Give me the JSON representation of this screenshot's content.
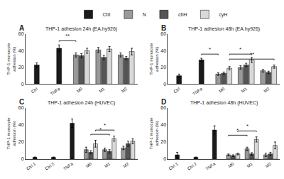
{
  "chart_data": [
    {
      "type": "bar",
      "panel_label": "A",
      "title": "THP-1 adhesion 24h (EA.hy926)",
      "ylabel": "THP-1 monocyte adhesion (%)",
      "ylim": [
        0,
        60
      ],
      "yticks": [
        0,
        20,
        40,
        60
      ],
      "grid": false,
      "legend": "top",
      "categories": [
        "Ctrl",
        "TNFa",
        "M0",
        "M1",
        "M2"
      ],
      "series": [
        {
          "name": "Ctrl",
          "color": "#1a1a1a",
          "values": [
            23,
            43,
            null,
            null,
            null
          ],
          "errors": [
            2.5,
            4,
            null,
            null,
            null
          ]
        },
        {
          "name": "N",
          "color": "#999999",
          "values": [
            null,
            null,
            35,
            41,
            35
          ],
          "errors": [
            null,
            null,
            2.5,
            3,
            2.5
          ]
        },
        {
          "name": "chH",
          "color": "#555555",
          "values": [
            null,
            null,
            34,
            32,
            31
          ],
          "errors": [
            null,
            null,
            2.5,
            2.5,
            2
          ]
        },
        {
          "name": "cyH",
          "color": "#d9d9d9",
          "values": [
            null,
            null,
            40,
            42,
            39
          ],
          "errors": [
            null,
            null,
            3,
            3,
            4
          ]
        }
      ],
      "significance": [
        {
          "from": {
            "category": "TNFa",
            "series": "Ctrl"
          },
          "to": {
            "category": "M0",
            "series": "N"
          },
          "y": 52,
          "label": "**"
        }
      ]
    },
    {
      "type": "bar",
      "panel_label": "B",
      "title": "THP-1 adhesion 48h (EA.hy926)",
      "ylabel": "THP-1 monocyte adhesion (%)",
      "ylim": [
        0,
        60
      ],
      "yticks": [
        0,
        20,
        40,
        60
      ],
      "grid": false,
      "categories": [
        "Ctrl",
        "TNFa",
        "M0",
        "M1",
        "M2"
      ],
      "series": [
        {
          "name": "Ctrl",
          "color": "#1a1a1a",
          "values": [
            10,
            29,
            null,
            null,
            null
          ],
          "errors": [
            2,
            2,
            null,
            null,
            null
          ]
        },
        {
          "name": "N",
          "color": "#999999",
          "values": [
            null,
            null,
            12,
            20,
            16
          ],
          "errors": [
            null,
            null,
            1.5,
            2,
            1.5
          ]
        },
        {
          "name": "chH",
          "color": "#555555",
          "values": [
            null,
            null,
            13,
            23,
            14
          ],
          "errors": [
            null,
            null,
            1.5,
            2,
            1.5
          ]
        },
        {
          "name": "cyH",
          "color": "#d9d9d9",
          "values": [
            null,
            null,
            19,
            29,
            21
          ],
          "errors": [
            null,
            null,
            2,
            3,
            2
          ]
        }
      ],
      "significance": [
        {
          "from": {
            "category": "TNFa",
            "series": "Ctrl"
          },
          "to": {
            "category": "M0",
            "series": "N"
          },
          "y": 36,
          "label": "*"
        },
        {
          "from": {
            "category": "M0",
            "series": "cyH"
          },
          "to": {
            "category": "M1",
            "series": "cyH"
          },
          "y": 36,
          "label": "*"
        },
        {
          "from": {
            "category": "M0",
            "series": "cyH"
          },
          "to": {
            "category": "M2",
            "series": "cyH"
          },
          "y": 30,
          "label": "**"
        }
      ]
    },
    {
      "type": "bar",
      "panel_label": "C",
      "title": "THP-1 adhesion 24h (HUVEC)",
      "ylabel": "THP-1 monocyte adhesion (%)",
      "ylim": [
        0,
        60
      ],
      "yticks": [
        0,
        20,
        40,
        60
      ],
      "grid": false,
      "categories": [
        "Ctrl 1",
        "Ctrl 2",
        "TNFa",
        "M0",
        "M1",
        "M2"
      ],
      "series": [
        {
          "name": "Ctrl",
          "color": "#1a1a1a",
          "values": [
            2,
            2,
            42,
            null,
            null,
            null
          ],
          "errors": [
            0.5,
            0.5,
            5,
            null,
            null,
            null
          ]
        },
        {
          "name": "N",
          "color": "#999999",
          "values": [
            null,
            null,
            null,
            11,
            11,
            13
          ],
          "errors": [
            null,
            null,
            null,
            3,
            2,
            2
          ]
        },
        {
          "name": "chH",
          "color": "#555555",
          "values": [
            null,
            null,
            null,
            8,
            9,
            18
          ],
          "errors": [
            null,
            null,
            null,
            2,
            2,
            3
          ]
        },
        {
          "name": "cyH",
          "color": "#d9d9d9",
          "values": [
            null,
            null,
            null,
            18,
            24,
            21
          ],
          "errors": [
            null,
            null,
            null,
            4,
            3,
            3
          ]
        }
      ],
      "significance": [
        {
          "from": {
            "category": "M0",
            "series": "cyH"
          },
          "to": {
            "category": "M1",
            "series": "cyH"
          },
          "y": 34,
          "label": "*"
        },
        {
          "from": {
            "category": "M0",
            "series": "chH"
          },
          "to": {
            "category": "M1",
            "series": "chH"
          },
          "y": 29,
          "label": "*"
        }
      ]
    },
    {
      "type": "bar",
      "panel_label": "D",
      "title": "THP-1 adhesion 48h (HUVEC)",
      "ylabel": "THP-1 monocyte adhesion (%)",
      "ylim": [
        0,
        60
      ],
      "yticks": [
        0,
        20,
        40,
        60
      ],
      "grid": false,
      "categories": [
        "Ctrl 1",
        "Ctrl 2",
        "TNFa",
        "M0",
        "M1",
        "M2"
      ],
      "series": [
        {
          "name": "Ctrl",
          "color": "#1a1a1a",
          "values": [
            5,
            2,
            34,
            null,
            null,
            null
          ],
          "errors": [
            3,
            0.5,
            5,
            null,
            null,
            null
          ]
        },
        {
          "name": "N",
          "color": "#999999",
          "values": [
            null,
            null,
            null,
            5,
            12,
            5
          ],
          "errors": [
            null,
            null,
            null,
            1,
            2,
            2
          ]
        },
        {
          "name": "chH",
          "color": "#555555",
          "values": [
            null,
            null,
            null,
            4,
            6,
            6
          ],
          "errors": [
            null,
            null,
            null,
            1,
            1.5,
            2
          ]
        },
        {
          "name": "cyH",
          "color": "#d9d9d9",
          "values": [
            null,
            null,
            null,
            6,
            23,
            16
          ],
          "errors": [
            null,
            null,
            null,
            1,
            3,
            4
          ]
        }
      ],
      "significance": [
        {
          "from": {
            "category": "M0",
            "series": "cyH"
          },
          "to": {
            "category": "M1",
            "series": "cyH"
          },
          "y": 33,
          "label": "*"
        },
        {
          "from": {
            "category": "M0",
            "series": "N"
          },
          "to": {
            "category": "M1",
            "series": "N"
          },
          "y": 28,
          "label": "*"
        }
      ]
    }
  ]
}
